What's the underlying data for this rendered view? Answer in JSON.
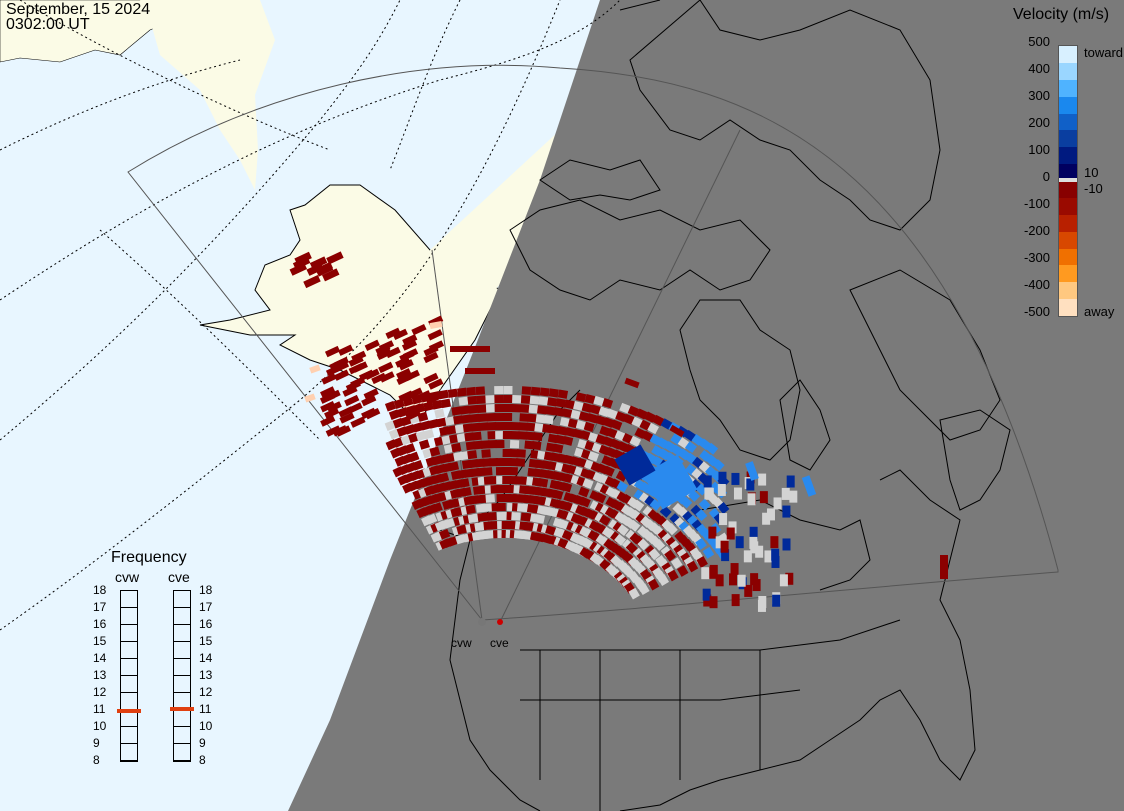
{
  "header": {
    "date": "September, 15 2024",
    "time": "0302:00 UT"
  },
  "colorbar": {
    "title": "Velocity (m/s)",
    "ticks": [
      "500",
      "400",
      "300",
      "200",
      "100",
      "0",
      "-100",
      "-200",
      "-300",
      "-400",
      "-500"
    ],
    "inner_labels": [
      "10",
      "-10"
    ],
    "side_labels": {
      "toward": "toward",
      "away": "away"
    },
    "colors": [
      "#d8f0ff",
      "#9ad6ff",
      "#4fb3ff",
      "#1a88ee",
      "#1060c8",
      "#0a3ea0",
      "#001a80",
      "#000060",
      "#880000",
      "#9a0a00",
      "#b82000",
      "#d84800",
      "#f07000",
      "#ff9a20",
      "#ffc880",
      "#ffe0c0"
    ]
  },
  "frequency": {
    "title": "Frequency",
    "radars": [
      {
        "name": "cvw",
        "value": 10.9
      },
      {
        "name": "cve",
        "value": 11.0
      }
    ],
    "scale": [
      "18",
      "17",
      "16",
      "15",
      "14",
      "13",
      "12",
      "11",
      "10",
      "9",
      "8"
    ],
    "indicator_color": "#e04010"
  },
  "radar_labels": [
    "cvw",
    "cve"
  ],
  "map_colors": {
    "ocean": "#e8f6ff",
    "land_day": "#fbfbe6",
    "night": "#7a7a7a",
    "backscatter_ground": "#d3d3d3",
    "away_dark": "#8b0000",
    "toward_dark": "#002a9a",
    "toward_light": "#2a8aee"
  }
}
